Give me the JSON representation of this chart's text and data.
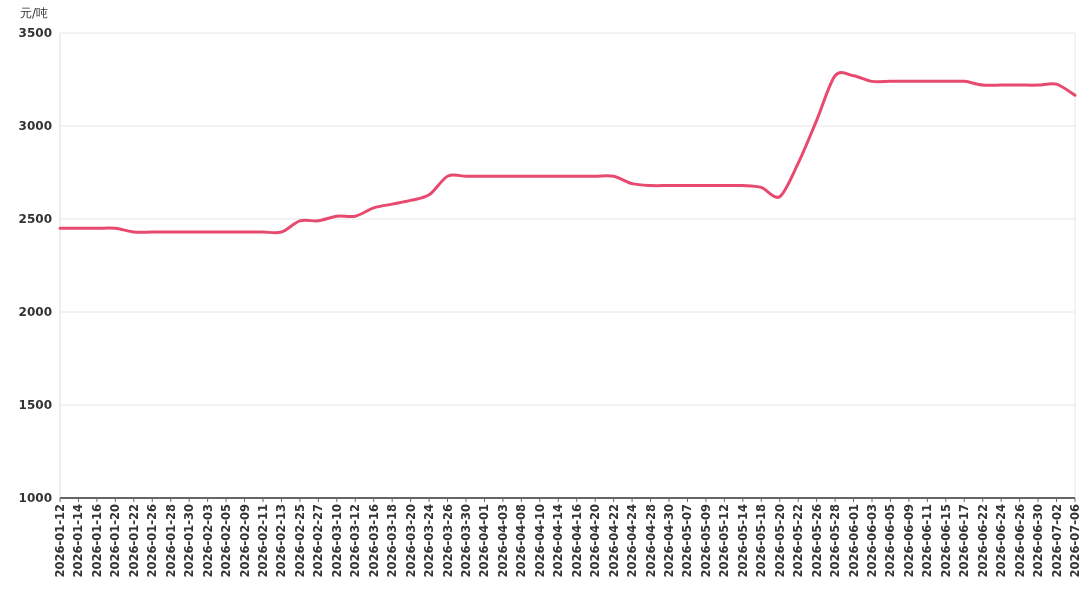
{
  "chart_data": {
    "type": "line",
    "ylabel": "元/吨",
    "categories": [
      "2026-01-12",
      "2026-01-14",
      "2026-01-16",
      "2026-01-20",
      "2026-01-22",
      "2026-01-26",
      "2026-01-28",
      "2026-01-30",
      "2026-02-03",
      "2026-02-05",
      "2026-02-09",
      "2026-02-11",
      "2026-02-13",
      "2026-02-25",
      "2026-02-27",
      "2026-03-10",
      "2026-03-12",
      "2026-03-16",
      "2026-03-18",
      "2026-03-20",
      "2026-03-24",
      "2026-03-26",
      "2026-03-30",
      "2026-04-01",
      "2026-04-03",
      "2026-04-08",
      "2026-04-10",
      "2026-04-14",
      "2026-04-16",
      "2026-04-20",
      "2026-04-22",
      "2026-04-24",
      "2026-04-28",
      "2026-04-30",
      "2026-05-07",
      "2026-05-09",
      "2026-05-12",
      "2026-05-14",
      "2026-05-18",
      "2026-05-20",
      "2026-05-22",
      "2026-05-26",
      "2026-05-28",
      "2026-06-01",
      "2026-06-03",
      "2026-06-05",
      "2026-06-09",
      "2026-06-11",
      "2026-06-15",
      "2026-06-17",
      "2026-06-22",
      "2026-06-24",
      "2026-06-26",
      "2026-06-30",
      "2026-07-02",
      "2026-07-06"
    ],
    "series": [
      {
        "color": "#e8496f",
        "values": [
          2450,
          2450,
          2450,
          2450,
          2430,
          2430,
          2430,
          2430,
          2430,
          2430,
          2430,
          2430,
          2430,
          2490,
          2490,
          2515,
          2515,
          2560,
          2580,
          2600,
          2630,
          2730,
          2730,
          2730,
          2730,
          2730,
          2730,
          2730,
          2730,
          2730,
          2730,
          2690,
          2680,
          2680,
          2680,
          2680,
          2680,
          2680,
          2670,
          2620,
          2800,
          3030,
          3270,
          3270,
          3240,
          3240,
          3240,
          3240,
          3240,
          3240,
          3220,
          3220,
          3220,
          3220,
          3225,
          3165
        ]
      }
    ],
    "ylim": [
      1000,
      3500
    ],
    "yticks": [
      1000,
      1500,
      2000,
      2500,
      3000,
      3500
    ],
    "grid": "y",
    "marker": "none",
    "line_style": "solid"
  }
}
